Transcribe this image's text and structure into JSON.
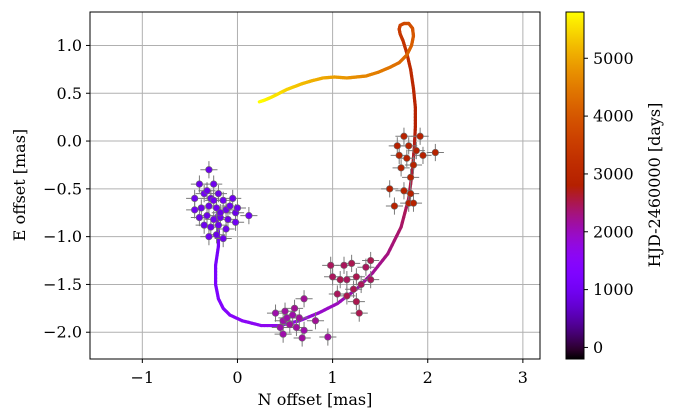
{
  "chart_data": {
    "type": "scatter",
    "title": "",
    "xlabel": "N offset [mas]",
    "ylabel": "E offset [mas]",
    "xlim": [
      -1.55,
      3.18
    ],
    "ylim": [
      -2.28,
      1.35
    ],
    "xticks": [
      -1,
      0,
      1,
      2,
      3
    ],
    "yticks": [
      1.0,
      0.5,
      0.0,
      -0.5,
      -1.0,
      -1.5,
      -2.0
    ],
    "xtick_labels": [
      "−1",
      "0",
      "1",
      "2",
      "3"
    ],
    "ytick_labels": [
      "1.0",
      "0.5",
      "0.0",
      "−0.5",
      "−1.0",
      "−1.5",
      "−2.0"
    ],
    "grid": true,
    "colorbar": {
      "label": "HJD-2460000 [days]",
      "range": [
        -200,
        5800
      ],
      "ticks": [
        0,
        1000,
        2000,
        3000,
        4000,
        5000
      ],
      "tick_labels": [
        "0",
        "1000",
        "2000",
        "3000",
        "4000",
        "5000"
      ],
      "colormap": "gnuplot"
    },
    "orbit_track": {
      "description_color_range": [
        900,
        5800
      ],
      "x": [
        -0.22,
        -0.2,
        -0.2,
        -0.23,
        -0.23,
        -0.2,
        -0.15,
        -0.08,
        0.05,
        0.25,
        0.45,
        0.65,
        0.85,
        1.05,
        1.25,
        1.42,
        1.58,
        1.72,
        1.8,
        1.84,
        1.86,
        1.87,
        1.87,
        1.85,
        1.82,
        1.78,
        1.74,
        1.71,
        1.7,
        1.71,
        1.75,
        1.8,
        1.84,
        1.85,
        1.83,
        1.78,
        1.7,
        1.6,
        1.48,
        1.35,
        1.25,
        1.15,
        1.02,
        0.9,
        0.78,
        0.68,
        0.6,
        0.52,
        0.44,
        0.36,
        0.29,
        0.23
      ],
      "y": [
        -0.78,
        -0.95,
        -1.1,
        -1.3,
        -1.5,
        -1.65,
        -1.75,
        -1.82,
        -1.88,
        -1.93,
        -1.93,
        -1.88,
        -1.8,
        -1.7,
        -1.55,
        -1.38,
        -1.18,
        -0.9,
        -0.6,
        -0.3,
        -0.05,
        0.15,
        0.35,
        0.55,
        0.75,
        0.92,
        1.05,
        1.12,
        1.17,
        1.21,
        1.23,
        1.23,
        1.18,
        1.1,
        1.0,
        0.9,
        0.82,
        0.77,
        0.72,
        0.68,
        0.67,
        0.66,
        0.67,
        0.66,
        0.63,
        0.6,
        0.57,
        0.54,
        0.5,
        0.46,
        0.43,
        0.41
      ],
      "t": [
        900,
        980,
        1060,
        1140,
        1220,
        1300,
        1380,
        1460,
        1540,
        1620,
        1700,
        1800,
        1900,
        2000,
        2100,
        2200,
        2300,
        2400,
        2500,
        2600,
        2700,
        2800,
        2900,
        3000,
        3100,
        3200,
        3300,
        3400,
        3500,
        3600,
        3700,
        3800,
        3900,
        4000,
        4100,
        4200,
        4300,
        4400,
        4500,
        4600,
        4700,
        4800,
        4900,
        5000,
        5100,
        5200,
        5300,
        5400,
        5500,
        5600,
        5700,
        5800
      ]
    },
    "observations": [
      {
        "x": -0.3,
        "y": -0.3,
        "t": 900
      },
      {
        "x": -0.25,
        "y": -0.45,
        "t": 950
      },
      {
        "x": -0.4,
        "y": -0.45,
        "t": 900
      },
      {
        "x": -0.45,
        "y": -0.6,
        "t": 950
      },
      {
        "x": -0.35,
        "y": -0.55,
        "t": 1000
      },
      {
        "x": -0.28,
        "y": -0.6,
        "t": 950
      },
      {
        "x": -0.2,
        "y": -0.55,
        "t": 900
      },
      {
        "x": -0.15,
        "y": -0.62,
        "t": 1000
      },
      {
        "x": -0.05,
        "y": -0.6,
        "t": 950
      },
      {
        "x": -0.45,
        "y": -0.72,
        "t": 1000
      },
      {
        "x": -0.38,
        "y": -0.7,
        "t": 900
      },
      {
        "x": -0.3,
        "y": -0.68,
        "t": 950
      },
      {
        "x": -0.22,
        "y": -0.7,
        "t": 1000
      },
      {
        "x": -0.12,
        "y": -0.72,
        "t": 950
      },
      {
        "x": -0.02,
        "y": -0.75,
        "t": 900
      },
      {
        "x": 0.12,
        "y": -0.78,
        "t": 1000
      },
      {
        "x": -0.4,
        "y": -0.8,
        "t": 950
      },
      {
        "x": -0.32,
        "y": -0.78,
        "t": 900
      },
      {
        "x": -0.25,
        "y": -0.82,
        "t": 1000
      },
      {
        "x": -0.18,
        "y": -0.8,
        "t": 950
      },
      {
        "x": -0.1,
        "y": -0.82,
        "t": 900
      },
      {
        "x": -0.02,
        "y": -0.85,
        "t": 1000
      },
      {
        "x": -0.35,
        "y": -0.88,
        "t": 950
      },
      {
        "x": -0.28,
        "y": -0.9,
        "t": 900
      },
      {
        "x": -0.2,
        "y": -0.88,
        "t": 1000
      },
      {
        "x": -0.12,
        "y": -0.92,
        "t": 950
      },
      {
        "x": -0.22,
        "y": -0.98,
        "t": 900
      },
      {
        "x": -0.3,
        "y": -1.0,
        "t": 1000
      },
      {
        "x": -0.15,
        "y": -1.02,
        "t": 950
      },
      {
        "x": -0.25,
        "y": -0.62,
        "t": 1000
      },
      {
        "x": -0.32,
        "y": -0.52,
        "t": 950
      },
      {
        "x": -0.18,
        "y": -0.75,
        "t": 900
      },
      {
        "x": -0.08,
        "y": -0.68,
        "t": 1000
      },
      {
        "x": 0.0,
        "y": -0.7,
        "t": 950
      },
      {
        "x": 1.68,
        "y": -0.05,
        "t": 2850
      },
      {
        "x": 1.8,
        "y": -0.05,
        "t": 2900
      },
      {
        "x": 1.88,
        "y": -0.1,
        "t": 2850
      },
      {
        "x": 1.75,
        "y": 0.05,
        "t": 2900
      },
      {
        "x": 1.92,
        "y": 0.05,
        "t": 2850
      },
      {
        "x": 1.7,
        "y": -0.15,
        "t": 2900
      },
      {
        "x": 1.78,
        "y": -0.18,
        "t": 2850
      },
      {
        "x": 1.85,
        "y": -0.25,
        "t": 2900
      },
      {
        "x": 1.72,
        "y": -0.28,
        "t": 2850
      },
      {
        "x": 2.08,
        "y": -0.12,
        "t": 2900
      },
      {
        "x": 1.95,
        "y": -0.15,
        "t": 2850
      },
      {
        "x": 1.82,
        "y": -0.38,
        "t": 2900
      },
      {
        "x": 1.6,
        "y": -0.5,
        "t": 2850
      },
      {
        "x": 1.75,
        "y": -0.52,
        "t": 2900
      },
      {
        "x": 1.82,
        "y": -0.55,
        "t": 2850
      },
      {
        "x": 1.65,
        "y": -0.68,
        "t": 2900
      },
      {
        "x": 1.8,
        "y": -0.65,
        "t": 2850
      },
      {
        "x": 1.85,
        "y": -0.65,
        "t": 2900
      },
      {
        "x": 1.0,
        "y": -1.42,
        "t": 2450
      },
      {
        "x": 1.08,
        "y": -1.45,
        "t": 2500
      },
      {
        "x": 1.12,
        "y": -1.3,
        "t": 2450
      },
      {
        "x": 1.2,
        "y": -1.28,
        "t": 2500
      },
      {
        "x": 1.15,
        "y": -1.45,
        "t": 2450
      },
      {
        "x": 1.25,
        "y": -1.42,
        "t": 2500
      },
      {
        "x": 1.35,
        "y": -1.32,
        "t": 2450
      },
      {
        "x": 1.4,
        "y": -1.25,
        "t": 2500
      },
      {
        "x": 1.3,
        "y": -1.5,
        "t": 2450
      },
      {
        "x": 1.22,
        "y": -1.55,
        "t": 2500
      },
      {
        "x": 1.4,
        "y": -1.45,
        "t": 2450
      },
      {
        "x": 1.15,
        "y": -1.62,
        "t": 2500
      },
      {
        "x": 1.05,
        "y": -1.6,
        "t": 2450
      },
      {
        "x": 1.25,
        "y": -1.68,
        "t": 2500
      },
      {
        "x": 0.98,
        "y": -1.3,
        "t": 2450
      },
      {
        "x": 1.28,
        "y": -1.8,
        "t": 2500
      },
      {
        "x": 0.4,
        "y": -1.8,
        "t": 2100
      },
      {
        "x": 0.5,
        "y": -1.78,
        "t": 2150
      },
      {
        "x": 0.58,
        "y": -1.82,
        "t": 2100
      },
      {
        "x": 0.65,
        "y": -1.85,
        "t": 2150
      },
      {
        "x": 0.48,
        "y": -1.88,
        "t": 2100
      },
      {
        "x": 0.55,
        "y": -1.92,
        "t": 2150
      },
      {
        "x": 0.45,
        "y": -1.95,
        "t": 2100
      },
      {
        "x": 0.62,
        "y": -1.95,
        "t": 2150
      },
      {
        "x": 0.48,
        "y": -2.02,
        "t": 2100
      },
      {
        "x": 0.95,
        "y": -2.05,
        "t": 2150
      },
      {
        "x": 0.7,
        "y": -1.65,
        "t": 2200
      },
      {
        "x": 0.7,
        "y": -1.98,
        "t": 2100
      },
      {
        "x": 0.82,
        "y": -1.88,
        "t": 2200
      },
      {
        "x": 0.68,
        "y": -2.06,
        "t": 2150
      },
      {
        "x": 0.52,
        "y": -1.85,
        "t": 2100
      },
      {
        "x": 0.6,
        "y": -1.75,
        "t": 2200
      }
    ]
  }
}
